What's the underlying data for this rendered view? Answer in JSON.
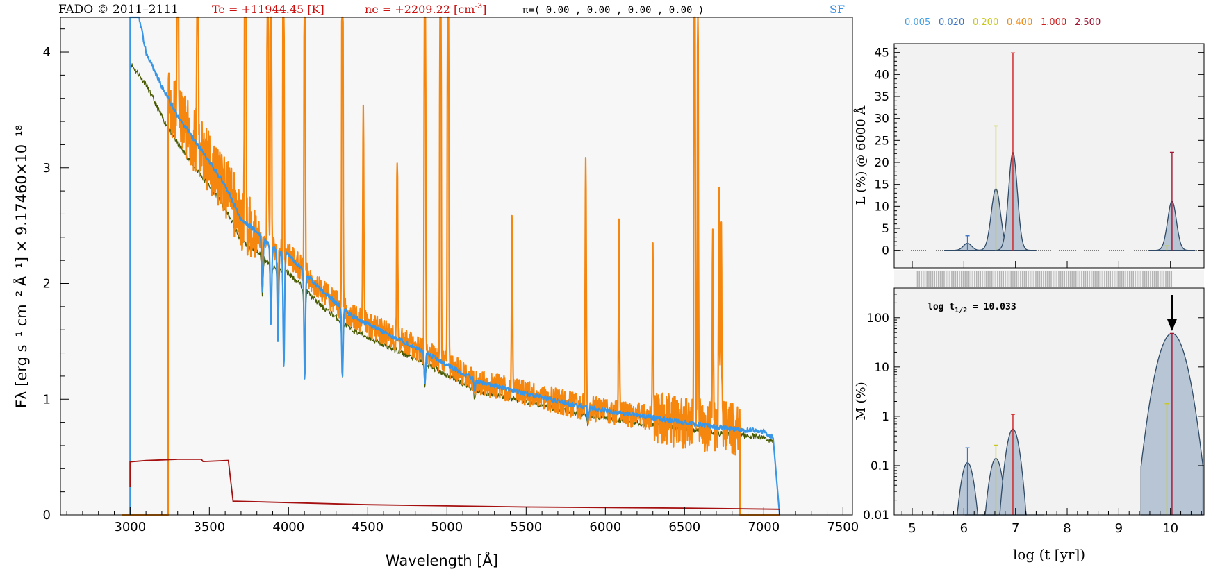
{
  "header": {
    "left": "FADO © 2011–2111",
    "te": "Te = +11944.45 [K]",
    "ne": "ne = +2209.22 [cm",
    "ne_exp": "-3",
    "ne_close": "]",
    "pi": "π=( 0.00 , 0.00 , 0.00 , 0.00 )",
    "tag": "SF"
  },
  "age_legend": {
    "items": [
      {
        "label": "0.005",
        "color": "#3f9fe8"
      },
      {
        "label": "0.020",
        "color": "#3a72c4"
      },
      {
        "label": "0.200",
        "color": "#c8c81e"
      },
      {
        "label": "0.400",
        "color": "#f08a14"
      },
      {
        "label": "1.000",
        "color": "#d21e1e"
      },
      {
        "label": "2.500",
        "color": "#a01432"
      }
    ]
  },
  "colors": {
    "observed": "#f5870f",
    "model_total": "#3a96e6",
    "stellar": "#485a00",
    "nebular": "#a50f0f",
    "error_grey": "#b4b4b4",
    "component_fill": "#b8c5d4",
    "component_line": "#2f4a66"
  },
  "chart_data": [
    {
      "type": "line",
      "title": "",
      "xlabel": "Wavelength [Å]",
      "ylabel": "Fλ [erg s⁻¹ cm⁻² Å⁻¹] × 9.17460×10⁻¹⁸",
      "xlim": [
        2560,
        7560
      ],
      "ylim": [
        0,
        4.3
      ],
      "xticks": [
        3000,
        3500,
        4000,
        4500,
        5000,
        5500,
        6000,
        6500,
        7000,
        7500
      ],
      "yticks": [
        0,
        1,
        2,
        3,
        4
      ],
      "continuum_nodes": [
        {
          "x": 3000,
          "y": 4.2
        },
        {
          "x": 3100,
          "y": 4.0
        },
        {
          "x": 3200,
          "y": 3.7
        },
        {
          "x": 3300,
          "y": 3.45
        },
        {
          "x": 3400,
          "y": 3.25
        },
        {
          "x": 3500,
          "y": 3.05
        },
        {
          "x": 3600,
          "y": 2.85
        },
        {
          "x": 3700,
          "y": 2.55
        },
        {
          "x": 3800,
          "y": 2.45
        },
        {
          "x": 3900,
          "y": 2.3
        },
        {
          "x": 4000,
          "y": 2.25
        },
        {
          "x": 4100,
          "y": 2.1
        },
        {
          "x": 4200,
          "y": 1.95
        },
        {
          "x": 4400,
          "y": 1.72
        },
        {
          "x": 4600,
          "y": 1.58
        },
        {
          "x": 4800,
          "y": 1.45
        },
        {
          "x": 5000,
          "y": 1.3
        },
        {
          "x": 5200,
          "y": 1.15
        },
        {
          "x": 5500,
          "y": 1.05
        },
        {
          "x": 5800,
          "y": 0.95
        },
        {
          "x": 6100,
          "y": 0.88
        },
        {
          "x": 6400,
          "y": 0.82
        },
        {
          "x": 6700,
          "y": 0.76
        },
        {
          "x": 7000,
          "y": 0.72
        },
        {
          "x": 7050,
          "y": 0.68
        }
      ],
      "stellar_scale": 0.93,
      "absorption_lines": [
        {
          "x": 3835,
          "depth": 0.2
        },
        {
          "x": 3889,
          "depth": 0.3
        },
        {
          "x": 3933,
          "depth": 0.35
        },
        {
          "x": 3970,
          "depth": 0.45
        },
        {
          "x": 4102,
          "depth": 0.45
        },
        {
          "x": 4340,
          "depth": 0.35
        },
        {
          "x": 4861,
          "depth": 0.2
        },
        {
          "x": 5175,
          "depth": 0.1
        },
        {
          "x": 5890,
          "depth": 0.12
        }
      ],
      "emission_lines": [
        {
          "x": 3727,
          "peak": 8.0
        },
        {
          "x": 3869,
          "peak": 6.0
        },
        {
          "x": 3889,
          "peak": 5.0
        },
        {
          "x": 3968,
          "peak": 5.0
        },
        {
          "x": 4102,
          "peak": 5.0
        },
        {
          "x": 4340,
          "peak": 6.0
        },
        {
          "x": 4861,
          "peak": 8.0
        },
        {
          "x": 4959,
          "peak": 8.0
        },
        {
          "x": 5007,
          "peak": 8.0
        },
        {
          "x": 5876,
          "peak": 2.2
        },
        {
          "x": 6300,
          "peak": 1.45
        },
        {
          "x": 6563,
          "peak": 8.0
        },
        {
          "x": 6584,
          "peak": 4.0
        },
        {
          "x": 6717,
          "peak": 2.0
        },
        {
          "x": 6731,
          "peak": 1.9
        },
        {
          "x": 5411,
          "peak": 1.5
        },
        {
          "x": 4686,
          "peak": 1.6
        },
        {
          "x": 3426,
          "peak": 3.7
        },
        {
          "x": 3301,
          "peak": 3.8
        },
        {
          "x": 4472,
          "peak": 1.8
        },
        {
          "x": 6086,
          "peak": 1.7
        },
        {
          "x": 6678,
          "peak": 1.5
        }
      ],
      "observed_range": [
        3240,
        6850
      ],
      "model_range": [
        3000,
        7100
      ],
      "nebular_segments": [
        {
          "x": 3000,
          "y": 0.46
        },
        {
          "x": 3100,
          "y": 0.47
        },
        {
          "x": 3300,
          "y": 0.48
        },
        {
          "x": 3450,
          "y": 0.48
        },
        {
          "x": 3460,
          "y": 0.46
        },
        {
          "x": 3620,
          "y": 0.47
        },
        {
          "x": 3650,
          "y": 0.12
        },
        {
          "x": 4500,
          "y": 0.09
        },
        {
          "x": 5500,
          "y": 0.07
        },
        {
          "x": 6500,
          "y": 0.06
        },
        {
          "x": 7100,
          "y": 0.05
        }
      ]
    },
    {
      "type": "line",
      "title": "",
      "xlabel": "",
      "ylabel": "L (%) @ 6000 Å",
      "xlim": [
        4.65,
        10.65
      ],
      "ylim": [
        -4,
        47
      ],
      "yticks": [
        0,
        5,
        10,
        15,
        20,
        25,
        30,
        35,
        40,
        45
      ],
      "bumps": [
        {
          "x": 6.07,
          "height": 1.6,
          "width": 0.08
        },
        {
          "x": 6.62,
          "height": 14.0,
          "width": 0.09
        },
        {
          "x": 6.95,
          "height": 22.3,
          "width": 0.085
        },
        {
          "x": 10.03,
          "height": 11.2,
          "width": 0.085
        }
      ],
      "spikes": [
        {
          "x": 6.07,
          "top": 3.3,
          "color": "#3a72c4"
        },
        {
          "x": 6.62,
          "top": 28.3,
          "color": "#c8c81e"
        },
        {
          "x": 6.95,
          "top": 44.9,
          "color": "#d21e1e"
        },
        {
          "x": 10.03,
          "top": 22.3,
          "color": "#a01432"
        },
        {
          "x": 9.93,
          "top": 1.0,
          "color": "#c8c81e"
        }
      ]
    },
    {
      "type": "line",
      "title": "",
      "xlabel": "log (t [yr])",
      "ylabel": "M (%)",
      "xlim": [
        4.65,
        10.65
      ],
      "ylog": true,
      "ylim": [
        0.01,
        400
      ],
      "yticks": [
        0.01,
        0.1,
        1,
        10,
        100
      ],
      "ytick_labels": [
        "0.01",
        "0.1",
        "1",
        "10",
        "100"
      ],
      "xticks": [
        5,
        6,
        7,
        8,
        9,
        10
      ],
      "annotation": "log t",
      "annotation_sub": "1/2",
      "annotation_value": " = 10.033",
      "arrow_x": 10.03,
      "bumps": [
        {
          "x": 6.07,
          "height": 0.115,
          "width": 0.09
        },
        {
          "x": 6.62,
          "height": 0.14,
          "width": 0.09
        },
        {
          "x": 6.95,
          "height": 0.55,
          "width": 0.09
        },
        {
          "x": 10.03,
          "height": 48.0,
          "width": 0.17
        }
      ],
      "spikes": [
        {
          "x": 6.07,
          "top": 0.23,
          "color": "#3a72c4"
        },
        {
          "x": 6.62,
          "top": 0.26,
          "color": "#c8c81e"
        },
        {
          "x": 6.95,
          "top": 1.1,
          "color": "#d21e1e"
        },
        {
          "x": 9.93,
          "top": 1.8,
          "color": "#c8c81e"
        },
        {
          "x": 10.03,
          "top": 48.0,
          "color": "#a01432"
        }
      ]
    }
  ]
}
